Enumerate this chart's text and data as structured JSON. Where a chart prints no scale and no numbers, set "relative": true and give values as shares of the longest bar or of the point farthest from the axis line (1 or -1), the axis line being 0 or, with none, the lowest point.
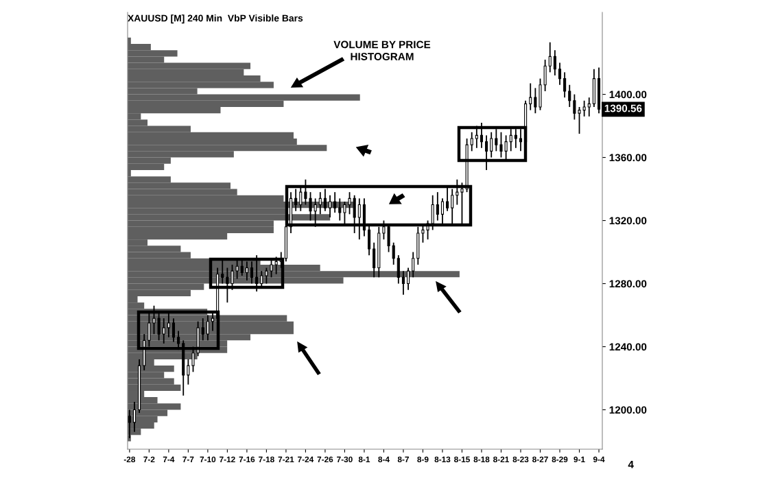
{
  "chart_data": [
    {
      "type": "candlestick",
      "title": "XAUUSD [M] 240 Min  VbP Visible Bars",
      "color": "#000000",
      "categories": [
        "-28",
        null,
        null,
        null,
        "7-2",
        null,
        null,
        null,
        "7-4",
        null,
        null,
        null,
        "7-7",
        null,
        null,
        null,
        "7-10",
        null,
        null,
        null,
        "7-12",
        null,
        null,
        null,
        "7-16",
        null,
        null,
        null,
        "7-18",
        null,
        null,
        null,
        "7-21",
        null,
        null,
        null,
        "7-24",
        null,
        null,
        null,
        "7-26",
        null,
        null,
        null,
        "7-30",
        null,
        null,
        null,
        "8-1",
        null,
        null,
        null,
        "8-4",
        null,
        null,
        null,
        "8-7",
        null,
        null,
        null,
        "8-9",
        null,
        null,
        null,
        "8-13",
        null,
        null,
        null,
        "8-15",
        null,
        null,
        null,
        "8-18",
        null,
        null,
        null,
        "8-21",
        null,
        null,
        null,
        "8-23",
        null,
        null,
        null,
        "8-27",
        null,
        null,
        null,
        "8-29",
        null,
        null,
        null,
        "9-1",
        null,
        null,
        null,
        "9-4"
      ],
      "ohlc": [
        [
          1196,
          1200,
          1182,
          1192
        ],
        [
          1192,
          1205,
          1186,
          1200
        ],
        [
          1200,
          1232,
          1198,
          1228
        ],
        [
          1228,
          1248,
          1225,
          1244
        ],
        [
          1244,
          1262,
          1240,
          1255
        ],
        [
          1255,
          1266,
          1248,
          1258
        ],
        [
          1258,
          1262,
          1244,
          1248
        ],
        [
          1248,
          1258,
          1242,
          1252
        ],
        [
          1252,
          1262,
          1246,
          1255
        ],
        [
          1255,
          1258,
          1243,
          1246
        ],
        [
          1246,
          1250,
          1238,
          1242
        ],
        [
          1242,
          1244,
          1209,
          1222
        ],
        [
          1222,
          1232,
          1216,
          1228
        ],
        [
          1228,
          1240,
          1224,
          1236
        ],
        [
          1236,
          1256,
          1234,
          1252
        ],
        [
          1252,
          1258,
          1244,
          1248
        ],
        [
          1248,
          1260,
          1244,
          1256
        ],
        [
          1256,
          1262,
          1250,
          1258
        ],
        [
          1258,
          1290,
          1256,
          1286
        ],
        [
          1286,
          1296,
          1280,
          1284
        ],
        [
          1284,
          1290,
          1268,
          1280
        ],
        [
          1280,
          1292,
          1276,
          1288
        ],
        [
          1288,
          1295,
          1283,
          1291
        ],
        [
          1291,
          1296,
          1285,
          1287
        ],
        [
          1287,
          1294,
          1282,
          1290
        ],
        [
          1290,
          1294,
          1280,
          1284
        ],
        [
          1284,
          1298,
          1275,
          1280
        ],
        [
          1280,
          1288,
          1277,
          1285
        ],
        [
          1285,
          1290,
          1280,
          1288
        ],
        [
          1288,
          1296,
          1284,
          1292
        ],
        [
          1292,
          1297,
          1286,
          1294
        ],
        [
          1294,
          1300,
          1290,
          1296
        ],
        [
          1296,
          1320,
          1294,
          1316
        ],
        [
          1316,
          1338,
          1312,
          1334
        ],
        [
          1334,
          1340,
          1326,
          1330
        ],
        [
          1330,
          1342,
          1326,
          1338
        ],
        [
          1338,
          1346,
          1330,
          1334
        ],
        [
          1334,
          1338,
          1320,
          1326
        ],
        [
          1326,
          1334,
          1316,
          1330
        ],
        [
          1330,
          1338,
          1324,
          1334
        ],
        [
          1334,
          1340,
          1326,
          1328
        ],
        [
          1328,
          1336,
          1322,
          1332
        ],
        [
          1332,
          1338,
          1325,
          1328
        ],
        [
          1328,
          1334,
          1320,
          1325
        ],
        [
          1325,
          1332,
          1318,
          1330
        ],
        [
          1330,
          1338,
          1324,
          1334
        ],
        [
          1334,
          1336,
          1312,
          1322
        ],
        [
          1322,
          1334,
          1308,
          1330
        ],
        [
          1330,
          1334,
          1310,
          1314
        ],
        [
          1314,
          1318,
          1298,
          1302
        ],
        [
          1302,
          1306,
          1284,
          1290
        ],
        [
          1290,
          1316,
          1284,
          1312
        ],
        [
          1312,
          1320,
          1308,
          1316
        ],
        [
          1316,
          1318,
          1300,
          1304
        ],
        [
          1304,
          1306,
          1292,
          1296
        ],
        [
          1296,
          1298,
          1280,
          1284
        ],
        [
          1284,
          1288,
          1273,
          1280
        ],
        [
          1280,
          1290,
          1276,
          1288
        ],
        [
          1288,
          1300,
          1284,
          1296
        ],
        [
          1296,
          1316,
          1292,
          1312
        ],
        [
          1312,
          1318,
          1306,
          1314
        ],
        [
          1314,
          1320,
          1308,
          1318
        ],
        [
          1318,
          1336,
          1314,
          1330
        ],
        [
          1330,
          1338,
          1320,
          1324
        ],
        [
          1324,
          1334,
          1318,
          1332
        ],
        [
          1332,
          1342,
          1326,
          1328
        ],
        [
          1328,
          1340,
          1318,
          1336
        ],
        [
          1336,
          1346,
          1330,
          1338
        ],
        [
          1338,
          1344,
          1318,
          1340
        ],
        [
          1340,
          1372,
          1338,
          1368
        ],
        [
          1368,
          1376,
          1364,
          1372
        ],
        [
          1372,
          1380,
          1366,
          1374
        ],
        [
          1374,
          1382,
          1366,
          1370
        ],
        [
          1370,
          1374,
          1352,
          1364
        ],
        [
          1364,
          1376,
          1360,
          1372
        ],
        [
          1372,
          1378,
          1364,
          1368
        ],
        [
          1368,
          1376,
          1360,
          1364
        ],
        [
          1364,
          1374,
          1358,
          1370
        ],
        [
          1370,
          1378,
          1364,
          1374
        ],
        [
          1374,
          1378,
          1366,
          1372
        ],
        [
          1372,
          1378,
          1364,
          1370
        ],
        [
          1370,
          1396,
          1368,
          1394
        ],
        [
          1394,
          1407,
          1390,
          1398
        ],
        [
          1398,
          1404,
          1388,
          1392
        ],
        [
          1392,
          1410,
          1390,
          1406
        ],
        [
          1406,
          1422,
          1402,
          1418
        ],
        [
          1418,
          1433,
          1414,
          1424
        ],
        [
          1424,
          1428,
          1412,
          1416
        ],
        [
          1416,
          1420,
          1406,
          1410
        ],
        [
          1410,
          1414,
          1398,
          1402
        ],
        [
          1402,
          1406,
          1392,
          1396
        ],
        [
          1396,
          1400,
          1384,
          1388
        ],
        [
          1388,
          1392,
          1375,
          1390
        ],
        [
          1390,
          1396,
          1386,
          1392
        ],
        [
          1392,
          1398,
          1386,
          1394
        ],
        [
          1394,
          1416,
          1392,
          1410
        ],
        [
          1410,
          1417,
          1388,
          1390.56
        ]
      ],
      "ylim": [
        1175,
        1452
      ],
      "yticks": [
        {
          "value": 1200,
          "label": "1200.00"
        },
        {
          "value": 1240,
          "label": "1240.00"
        },
        {
          "value": 1280,
          "label": "1280.00"
        },
        {
          "value": 1320,
          "label": "1320.00"
        },
        {
          "value": 1360,
          "label": "1360.00"
        },
        {
          "value": 1400,
          "label": "1400.00"
        }
      ],
      "annotations": [
        "VOLUME BY PRICE\nHISTOGRAM",
        "1390.56",
        "4"
      ]
    },
    {
      "type": "bar",
      "orientation": "horizontal",
      "relative": true,
      "color": "#5f5f5f",
      "tick_labels": false,
      "categories": [
        null,
        null,
        null,
        null,
        null,
        null,
        null,
        null,
        null,
        null,
        null,
        null,
        null,
        null,
        null,
        null,
        null,
        null,
        null,
        null,
        null,
        null,
        null,
        null,
        null,
        null,
        null,
        null,
        null,
        null,
        null,
        null,
        null,
        null,
        null,
        null,
        null,
        null,
        null,
        null,
        null,
        null,
        null,
        null,
        null,
        null,
        null,
        null,
        null,
        null,
        null,
        null,
        null,
        null,
        null,
        null,
        null,
        null,
        null,
        null,
        null,
        null,
        null,
        null
      ],
      "values": [
        0.01,
        0.07,
        0.15,
        0.11,
        0.37,
        0.35,
        0.4,
        0.44,
        0.21,
        0.7,
        0.47,
        0.28,
        0.04,
        0.06,
        0.19,
        0.5,
        0.51,
        0.6,
        0.32,
        0.13,
        0.11,
        0.01,
        0.13,
        0.31,
        0.33,
        0.47,
        0.68,
        0.48,
        0.61,
        0.44,
        0.44,
        0.3,
        0.06,
        0.16,
        0.19,
        0.4,
        0.58,
        1.0,
        0.65,
        0.23,
        0.19,
        0.03,
        0.05,
        0.24,
        0.48,
        0.5,
        0.5,
        0.37,
        0.3,
        0.3,
        0.21,
        0.08,
        0.14,
        0.11,
        0.14,
        0.16,
        0.05,
        0.09,
        0.16,
        0.12,
        0.09,
        0.08,
        0.04,
        0.01
      ]
    }
  ]
}
